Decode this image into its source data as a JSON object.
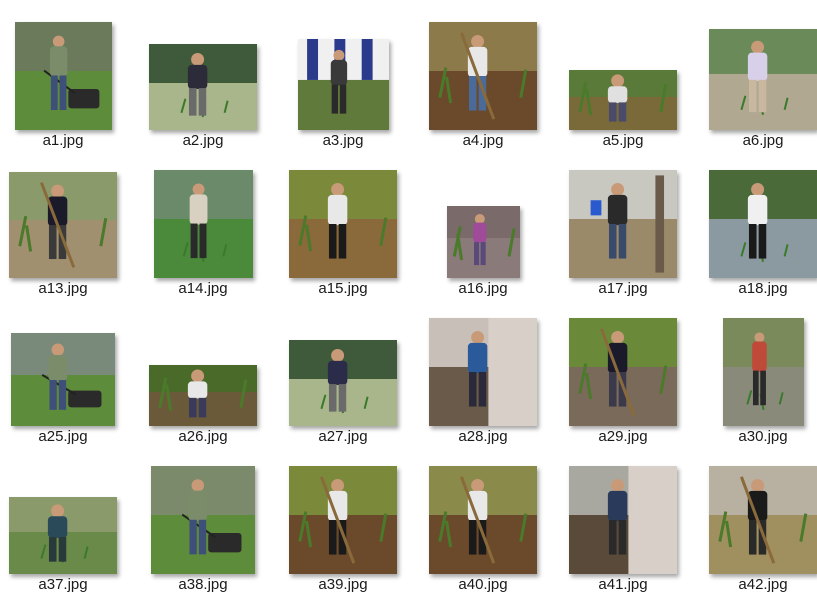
{
  "files": [
    {
      "name": "a1.jpg",
      "scene": "mower",
      "bg": "#6a7a5a",
      "ground": "#5d8c3a",
      "shirt": "#7a8c6a",
      "pants": "#3e4f7a"
    },
    {
      "name": "a2.jpg",
      "scene": "paddy",
      "bg": "#3f5a3a",
      "ground": "#a9b58a",
      "shirt": "#2b2b3a",
      "pants": "#6a6a6a"
    },
    {
      "name": "a3.jpg",
      "scene": "banner",
      "bg": "#2a3b8c",
      "ground": "#5f7a3a",
      "shirt": "#3a3a3a",
      "pants": "#2a2a2a"
    },
    {
      "name": "a4.jpg",
      "scene": "field-hoe",
      "bg": "#8c7a4a",
      "ground": "#6a4a2a",
      "shirt": "#e8e8e8",
      "pants": "#4a6a9a"
    },
    {
      "name": "a5.jpg",
      "scene": "field-bend",
      "bg": "#5a7a3a",
      "ground": "#7a6a3a",
      "shirt": "#e0e0e0",
      "pants": "#4a4a6a"
    },
    {
      "name": "a6.jpg",
      "scene": "paddy",
      "bg": "#6a8a5a",
      "ground": "#b0a890",
      "shirt": "#d8d0e8",
      "pants": "#c8b8a0"
    },
    {
      "name": "a13.jpg",
      "scene": "field-hoe",
      "bg": "#8a9a6a",
      "ground": "#a09070",
      "shirt": "#1a1a2a",
      "pants": "#3a3a3a"
    },
    {
      "name": "a14.jpg",
      "scene": "paddy-stand",
      "bg": "#6a8a6a",
      "ground": "#4a8a3a",
      "shirt": "#d8d0c0",
      "pants": "#2a2a2a"
    },
    {
      "name": "a15.jpg",
      "scene": "field-bend",
      "bg": "#7a8a3a",
      "ground": "#8a6a3a",
      "shirt": "#e8e8e8",
      "pants": "#1a1a1a"
    },
    {
      "name": "a16.jpg",
      "scene": "field-bend",
      "bg": "#7a6a6a",
      "ground": "#8a7a7a",
      "shirt": "#a04a9a",
      "pants": "#5a4a7a"
    },
    {
      "name": "a17.jpg",
      "scene": "trees",
      "bg": "#c8c8c0",
      "ground": "#9a8a6a",
      "shirt": "#2a2a2a",
      "pants": "#3a4a6a"
    },
    {
      "name": "a18.jpg",
      "scene": "paddy",
      "bg": "#4a6a3a",
      "ground": "#8a9aa0",
      "shirt": "#f0f0f0",
      "pants": "#1a1a1a"
    },
    {
      "name": "a25.jpg",
      "scene": "mower",
      "bg": "#7a8a7a",
      "ground": "#5d8c3a",
      "shirt": "#7a8c6a",
      "pants": "#3e4f7a"
    },
    {
      "name": "a26.jpg",
      "scene": "field-bend",
      "bg": "#4a6a2a",
      "ground": "#6a5a3a",
      "shirt": "#e8e8e8",
      "pants": "#3a3a5a"
    },
    {
      "name": "a27.jpg",
      "scene": "paddy",
      "bg": "#3f5a3a",
      "ground": "#a9b58a",
      "shirt": "#2b2b4a",
      "pants": "#6a6a6a"
    },
    {
      "name": "a28.jpg",
      "scene": "wall",
      "bg": "#c8c0b8",
      "ground": "#6a5a4a",
      "shirt": "#2a5a9a",
      "pants": "#2a2a3a"
    },
    {
      "name": "a29.jpg",
      "scene": "field-hoe",
      "bg": "#6a8a3a",
      "ground": "#7a6a5a",
      "shirt": "#1a1a2a",
      "pants": "#3a3a4a"
    },
    {
      "name": "a30.jpg",
      "scene": "paddy",
      "bg": "#7a8a5a",
      "ground": "#8a8a7a",
      "shirt": "#c04a3a",
      "pants": "#2a2a2a"
    },
    {
      "name": "a37.jpg",
      "scene": "paddy",
      "bg": "#8a9a6a",
      "ground": "#6a8a4a",
      "shirt": "#2a4a5a",
      "pants": "#2a3a3a"
    },
    {
      "name": "a38.jpg",
      "scene": "mower",
      "bg": "#7a8a6a",
      "ground": "#5d8c3a",
      "shirt": "#7a8c6a",
      "pants": "#3e4f7a"
    },
    {
      "name": "a39.jpg",
      "scene": "field-hoe",
      "bg": "#7a8a3a",
      "ground": "#6a4a2a",
      "shirt": "#e8e8e8",
      "pants": "#1a1a1a"
    },
    {
      "name": "a40.jpg",
      "scene": "field-hoe",
      "bg": "#8a8a4a",
      "ground": "#6a4a2a",
      "shirt": "#e8e8e8",
      "pants": "#1a1a1a"
    },
    {
      "name": "a41.jpg",
      "scene": "wall",
      "bg": "#a8a8a0",
      "ground": "#5a4a3a",
      "shirt": "#2a3a5a",
      "pants": "#2a2a2a"
    },
    {
      "name": "a42.jpg",
      "scene": "field-hoe",
      "bg": "#b8b0a0",
      "ground": "#a09060",
      "shirt": "#1a1a1a",
      "pants": "#2a2a2a"
    }
  ]
}
